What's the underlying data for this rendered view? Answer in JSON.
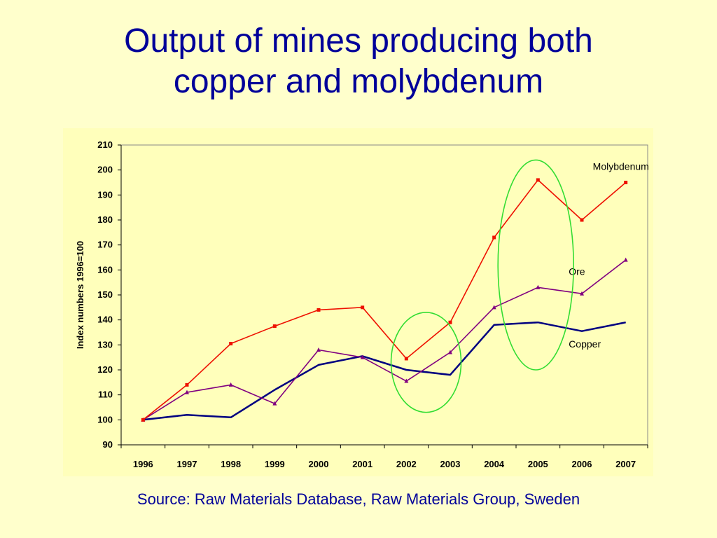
{
  "slide": {
    "title_line1": "Output of mines producing both",
    "title_line2": "copper and molybdenum",
    "source": "Source: Raw Materials Database, Raw Materials Group, Sweden"
  },
  "chart_data": {
    "type": "line",
    "title": "",
    "xlabel": "",
    "ylabel": "Index numbers 1996=100",
    "x": [
      "1996",
      "1997",
      "1998",
      "1999",
      "2000",
      "2001",
      "2002",
      "2003",
      "2004",
      "2005",
      "2006",
      "2007"
    ],
    "ylim": [
      90,
      210
    ],
    "yticks": [
      90,
      100,
      110,
      120,
      130,
      140,
      150,
      160,
      170,
      180,
      190,
      200,
      210
    ],
    "grid": false,
    "series": [
      {
        "name": "Molybdenum",
        "color": "#ee1100",
        "marker": "square",
        "values": [
          100,
          114,
          130.5,
          137.5,
          144,
          145,
          124.5,
          139,
          173,
          196,
          180,
          195
        ]
      },
      {
        "name": "Ore",
        "color": "#800080",
        "marker": "triangle",
        "values": [
          100,
          111,
          114,
          106.5,
          128,
          125,
          115.5,
          127,
          145,
          153,
          150.5,
          164
        ]
      },
      {
        "name": "Copper",
        "color": "#000080",
        "marker": "none",
        "values": [
          100,
          102,
          101,
          112,
          122,
          125.5,
          120,
          118,
          138,
          139,
          135.5,
          139
        ]
      }
    ],
    "annotations": [
      {
        "type": "ellipse",
        "color": "#33dd33",
        "note": "highlight 2002-2003"
      },
      {
        "type": "ellipse",
        "color": "#33dd33",
        "note": "highlight 2004-2005"
      }
    ]
  }
}
